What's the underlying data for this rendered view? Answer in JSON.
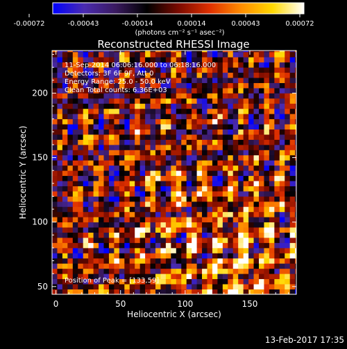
{
  "colors": {
    "background": "#000000",
    "text": "#ffffff",
    "colormap": [
      "#0000ff",
      "#4a2bb0",
      "#3a1a60",
      "#000000",
      "#7a0a00",
      "#e03000",
      "#ff8c00",
      "#ffd800",
      "#ffffff"
    ]
  },
  "colorbar": {
    "ticks": [
      "-0.00072",
      "-0.00043",
      "-0.00014",
      "0.00014",
      "0.00043",
      "0.00072"
    ],
    "min": -0.00072,
    "max": 0.00072,
    "unit": "(photons cm⁻² s⁻¹ asec⁻²)"
  },
  "chart_data": {
    "type": "heatmap",
    "title": "Reconstructed RHESSI Image",
    "xlabel": "Heliocentric X (arcsec)",
    "ylabel": "Heliocentric Y (arcsec)",
    "xlim": [
      -3,
      186
    ],
    "ylim": [
      44,
      233
    ],
    "xticks": [
      0,
      50,
      100,
      150
    ],
    "yticks": [
      50,
      100,
      150,
      200
    ],
    "annotations": [
      "11-Sep-2014 06:06:16.000 to 06:18:16.000",
      "Detectors: 3F 6F 9F, Att 0",
      "Energy Range: 25.0 - 50.0 keV",
      "Clean     Total counts: 6.36E+03"
    ],
    "peak_label": "Position of Peak = [133,59]",
    "peak": [
      133,
      59
    ],
    "pixel_size_arcsec": 4
  },
  "footer": {
    "timestamp": "13-Feb-2017 17:35"
  }
}
